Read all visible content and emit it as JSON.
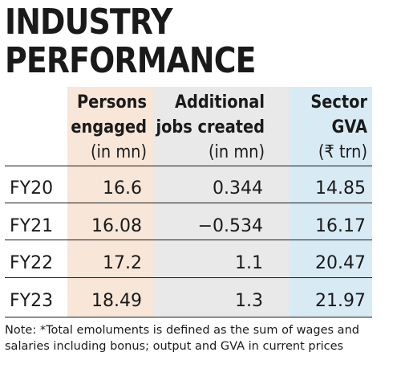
{
  "title": {
    "line1": "INDUSTRY",
    "line2": "PERFORMANCE"
  },
  "chart_data": {
    "type": "table",
    "columns": [
      {
        "line1": "Persons",
        "line2": "engaged",
        "unit": "(in mn)"
      },
      {
        "line1": "Additional",
        "line2": "jobs created",
        "unit": "(in mn)"
      },
      {
        "line1": "Sector",
        "line2": "GVA",
        "unit": "(₹ trn)"
      }
    ],
    "rows": [
      {
        "label": "FY20",
        "values": [
          "16.6",
          "0.344",
          "14.85"
        ]
      },
      {
        "label": "FY21",
        "values": [
          "16.08",
          "−0.534",
          "16.17"
        ]
      },
      {
        "label": "FY22",
        "values": [
          "17.2",
          "1.1",
          "20.47"
        ]
      },
      {
        "label": "FY23",
        "values": [
          "18.49",
          "1.3",
          "21.97"
        ]
      }
    ],
    "column_colors": [
      "#f8e6d8",
      "#e9e9e9",
      "#d8ebf5"
    ]
  },
  "note": "Note: *Total emoluments is defined as the sum of wages and salaries including bonus; output and GVA in current prices"
}
